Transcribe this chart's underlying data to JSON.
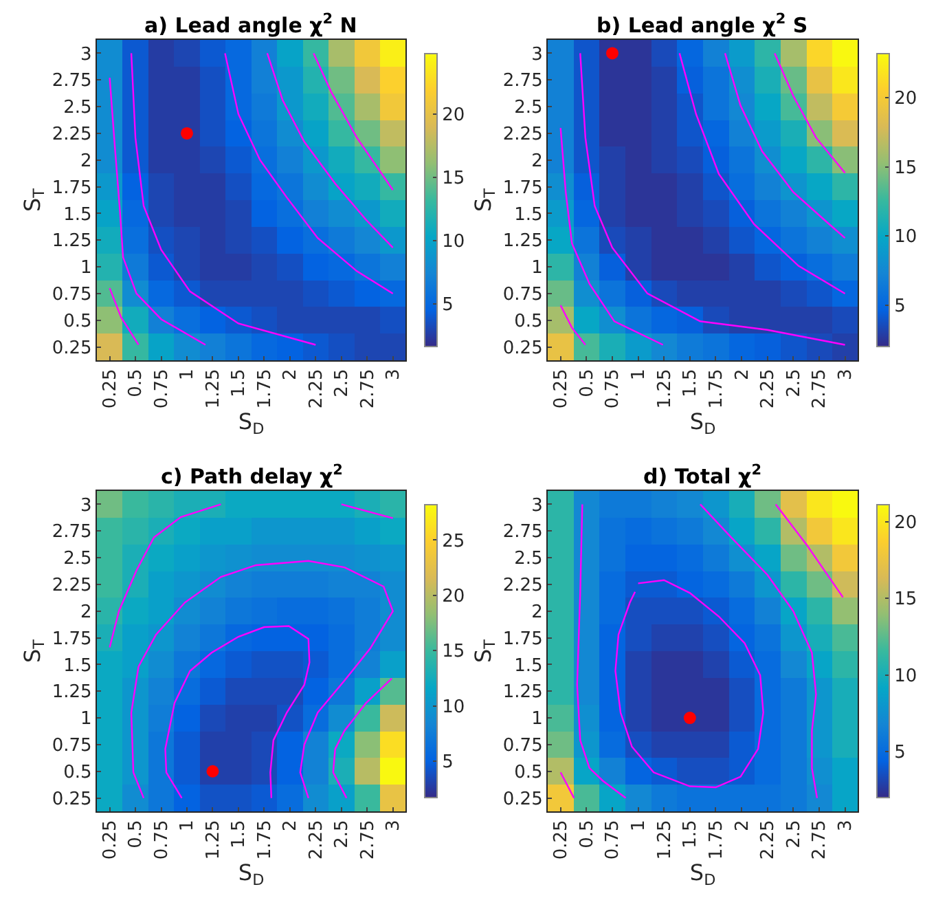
{
  "chart_data": [
    {
      "type": "heatmap",
      "title": "a) Lead angle χ$^{2}$ N",
      "xlabel": "S$_{D}$",
      "ylabel": "S$_{T}$",
      "x": [
        0.25,
        0.5,
        0.75,
        1,
        1.25,
        1.5,
        1.75,
        2,
        2.25,
        2.5,
        2.75,
        3
      ],
      "y": [
        3,
        2.75,
        2.5,
        2.25,
        2,
        1.75,
        1.5,
        1.25,
        1,
        0.75,
        0.5,
        0.25
      ],
      "xlim": [
        0.125,
        3.125
      ],
      "ylim": [
        0.125,
        3.125
      ],
      "xticks": [
        0.25,
        0.5,
        0.75,
        1,
        1.25,
        1.5,
        1.75,
        2,
        2.25,
        2.5,
        2.75,
        3
      ],
      "yticks": [
        0.25,
        0.5,
        0.75,
        1,
        1.25,
        1.5,
        1.75,
        2,
        2.25,
        2.5,
        2.75,
        3
      ],
      "clim": [
        1.6,
        24.8
      ],
      "cticks": [
        5,
        10,
        15,
        20
      ],
      "cells": [
        [
          8,
          4,
          2.5,
          3,
          4,
          5,
          7,
          10,
          13,
          17,
          21,
          24
        ],
        [
          8,
          4,
          2.5,
          2.5,
          3.5,
          5,
          7,
          9,
          12,
          15,
          19,
          22
        ],
        [
          8,
          4,
          2.5,
          2.5,
          3.5,
          5,
          6.5,
          9,
          11,
          14,
          17,
          21
        ],
        [
          8,
          4,
          2.5,
          2.5,
          3.5,
          4.5,
          6,
          8,
          10,
          13,
          15,
          18
        ],
        [
          8,
          4,
          2.5,
          2.5,
          3,
          4,
          5.5,
          7,
          9,
          11,
          13,
          16
        ],
        [
          9,
          4.5,
          3,
          2.5,
          2.5,
          3.5,
          5,
          6,
          8,
          10,
          11,
          13
        ],
        [
          10,
          5,
          3,
          2.5,
          2.5,
          3,
          4.5,
          5.5,
          7,
          8,
          9,
          11
        ],
        [
          11,
          5.5,
          3.5,
          3,
          2.5,
          3,
          3.5,
          4.5,
          5.5,
          6.5,
          7.5,
          9
        ],
        [
          12,
          6.5,
          4,
          3,
          2.5,
          2.5,
          3,
          3.5,
          4.5,
          5,
          6,
          7
        ],
        [
          14,
          8,
          5,
          4,
          3,
          3,
          3,
          3,
          3.5,
          4,
          4.5,
          5
        ],
        [
          16,
          11,
          7,
          5.5,
          4.5,
          4,
          3.5,
          3,
          3,
          3,
          3,
          3.5
        ],
        [
          19,
          13,
          10,
          8,
          7,
          6,
          5,
          4.5,
          4,
          3.5,
          3,
          3
        ]
      ],
      "series": [
        {
          "type": "line",
          "color": "#ff00ff",
          "x": [
            0.25,
            0.3,
            0.35,
            0.38,
            0.51,
            0.75,
            1.18
          ],
          "values": [
            2.77,
            2.13,
            1.52,
            1.09,
            0.75,
            0.51,
            0.27
          ]
        },
        {
          "type": "line",
          "color": "#ff00ff",
          "x": [
            0.25,
            0.36,
            0.53
          ],
          "values": [
            0.8,
            0.53,
            0.27
          ]
        },
        {
          "type": "line",
          "color": "#ff00ff",
          "x": [
            0.46,
            0.5,
            0.58,
            0.75,
            1.03,
            1.5,
            2.25
          ],
          "values": [
            3.0,
            2.21,
            1.57,
            1.16,
            0.77,
            0.47,
            0.27
          ]
        },
        {
          "type": "line",
          "color": "#ff00ff",
          "x": [
            1.37,
            1.5,
            1.71,
            1.97,
            2.27,
            2.65,
            3.0
          ],
          "values": [
            3.0,
            2.43,
            2.0,
            1.65,
            1.27,
            0.96,
            0.75
          ]
        },
        {
          "type": "line",
          "color": "#ff00ff",
          "x": [
            1.78,
            1.93,
            2.14,
            2.44,
            2.74,
            3.0
          ],
          "values": [
            3.0,
            2.56,
            2.17,
            1.78,
            1.44,
            1.18
          ]
        },
        {
          "type": "line",
          "color": "#ff00ff",
          "x": [
            2.23,
            2.4,
            2.65,
            3.0
          ],
          "values": [
            3.0,
            2.64,
            2.21,
            1.72
          ]
        },
        {
          "type": "scatter",
          "marker": "circle",
          "color": "#ff0000",
          "x": [
            1
          ],
          "values": [
            2.25
          ]
        }
      ]
    },
    {
      "type": "heatmap",
      "title": "b) Lead angle χ$^{2}$ S",
      "xlabel": "S$_{D}$",
      "ylabel": "S$_{T}$",
      "x": [
        0.25,
        0.5,
        0.75,
        1,
        1.25,
        1.5,
        1.75,
        2,
        2.25,
        2.5,
        2.75,
        3
      ],
      "y": [
        3,
        2.75,
        2.5,
        2.25,
        2,
        1.75,
        1.5,
        1.25,
        1,
        0.75,
        0.5,
        0.25
      ],
      "xlim": [
        0.125,
        3.125
      ],
      "ylim": [
        0.125,
        3.125
      ],
      "xticks": [
        0.25,
        0.5,
        0.75,
        1,
        1.25,
        1.5,
        1.75,
        2,
        2.25,
        2.5,
        2.75,
        3
      ],
      "yticks": [
        0.25,
        0.5,
        0.75,
        1,
        1.25,
        1.5,
        1.75,
        2,
        2.25,
        2.5,
        2.75,
        3
      ],
      "clim": [
        2,
        23.2
      ],
      "cticks": [
        5,
        10,
        15,
        20
      ],
      "cells": [
        [
          7,
          4,
          2.5,
          2.5,
          3.5,
          5,
          7,
          9,
          12,
          16,
          21,
          23
        ],
        [
          7,
          4,
          2.5,
          2.5,
          3,
          4.5,
          6,
          8,
          11,
          14,
          19,
          22
        ],
        [
          7,
          4,
          2.5,
          2.5,
          3,
          4,
          6,
          7.5,
          10,
          13,
          17,
          20
        ],
        [
          7,
          4,
          2.5,
          2.5,
          3,
          4,
          5,
          7,
          9,
          11,
          15,
          18
        ],
        [
          7,
          4,
          3,
          2.5,
          3,
          3.5,
          4.5,
          6,
          8,
          10,
          12,
          15
        ],
        [
          8,
          4.5,
          3,
          2.5,
          2.5,
          3,
          4,
          5.5,
          7,
          8.5,
          10,
          12
        ],
        [
          9,
          5,
          3,
          2.5,
          2.5,
          3,
          3.5,
          4.5,
          6,
          7,
          8.5,
          10
        ],
        [
          10,
          6,
          3.5,
          3,
          2.5,
          2.5,
          3,
          4,
          5,
          6,
          7,
          8
        ],
        [
          12,
          7,
          4.5,
          3,
          2.5,
          2.5,
          2.5,
          3,
          4,
          4.5,
          5.5,
          6.5
        ],
        [
          14,
          8,
          6,
          4.5,
          3.5,
          3,
          3,
          3,
          3,
          3.5,
          4,
          5
        ],
        [
          16,
          10,
          8,
          6,
          5,
          4.5,
          3.5,
          3,
          3,
          3,
          3,
          3.5
        ],
        [
          19,
          13,
          11,
          9,
          7.5,
          6.5,
          6,
          5,
          4.5,
          4,
          3.5,
          3
        ]
      ],
      "series": [
        {
          "type": "line",
          "color": "#ff00ff",
          "x": [
            0.25,
            0.3,
            0.36,
            0.53,
            0.77,
            1.24
          ],
          "values": [
            2.3,
            1.7,
            1.22,
            0.84,
            0.49,
            0.27
          ]
        },
        {
          "type": "line",
          "color": "#ff00ff",
          "x": [
            0.25,
            0.36,
            0.49
          ],
          "values": [
            0.64,
            0.43,
            0.27
          ]
        },
        {
          "type": "line",
          "color": "#ff00ff",
          "x": [
            0.44,
            0.49,
            0.58,
            0.75,
            1.09,
            1.6,
            2.25,
            3.0
          ],
          "values": [
            3.0,
            2.21,
            1.57,
            1.18,
            0.75,
            0.49,
            0.41,
            0.27
          ]
        },
        {
          "type": "line",
          "color": "#ff00ff",
          "x": [
            1.4,
            1.56,
            1.78,
            2.12,
            2.55,
            3.0
          ],
          "values": [
            3.0,
            2.43,
            1.87,
            1.4,
            1.01,
            0.75
          ]
        },
        {
          "type": "line",
          "color": "#ff00ff",
          "x": [
            1.84,
            1.99,
            2.2,
            2.5,
            2.8,
            3.0
          ],
          "values": [
            3.0,
            2.51,
            2.08,
            1.7,
            1.44,
            1.27
          ]
        },
        {
          "type": "line",
          "color": "#ff00ff",
          "x": [
            2.32,
            2.5,
            2.72,
            3.0
          ],
          "values": [
            3.0,
            2.6,
            2.21,
            1.88
          ]
        },
        {
          "type": "scatter",
          "marker": "circle",
          "color": "#ff0000",
          "x": [
            0.75
          ],
          "values": [
            3
          ]
        }
      ]
    },
    {
      "type": "heatmap",
      "title": "c) Path delay χ$^{2}$",
      "xlabel": "S$_{D}$",
      "ylabel": "S$_{T}$",
      "x": [
        0.25,
        0.5,
        0.75,
        1,
        1.25,
        1.5,
        1.75,
        2,
        2.25,
        2.5,
        2.75,
        3
      ],
      "y": [
        3,
        2.75,
        2.5,
        2.25,
        2,
        1.75,
        1.5,
        1.25,
        1,
        0.75,
        0.5,
        0.25
      ],
      "xlim": [
        0.125,
        3.125
      ],
      "ylim": [
        0.125,
        3.125
      ],
      "xticks": [
        0.25,
        0.5,
        0.75,
        1,
        1.25,
        1.5,
        1.75,
        2,
        2.25,
        2.5,
        2.75,
        3
      ],
      "yticks": [
        0.25,
        0.5,
        0.75,
        1,
        1.25,
        1.5,
        1.75,
        2,
        2.25,
        2.5,
        2.75,
        3
      ],
      "clim": [
        1.7,
        28.2
      ],
      "cticks": [
        5,
        10,
        15,
        20,
        25
      ],
      "cells": [
        [
          17,
          15,
          14,
          13,
          13,
          12,
          12,
          12,
          12,
          12,
          13,
          14
        ],
        [
          15,
          14,
          13,
          12,
          11,
          11,
          10,
          10,
          10,
          10,
          11,
          12
        ],
        [
          15,
          13,
          12,
          11,
          10,
          9.5,
          9,
          9,
          9,
          9,
          9.5,
          10
        ],
        [
          15,
          13,
          11,
          10,
          9,
          8,
          7.5,
          7.5,
          7.5,
          8,
          8,
          9
        ],
        [
          14,
          12,
          11,
          9,
          8,
          7,
          6.5,
          6,
          6,
          6.5,
          7.5,
          9
        ],
        [
          13,
          11,
          10,
          8,
          7,
          5.5,
          5,
          5,
          5,
          6,
          7.5,
          9
        ],
        [
          12,
          11,
          9,
          7,
          5.5,
          4.5,
          4,
          4,
          4.5,
          6,
          8,
          11
        ],
        [
          12,
          10,
          8,
          6,
          4.5,
          3.5,
          3.5,
          3.5,
          5,
          7,
          11,
          16
        ],
        [
          12,
          10,
          7.5,
          5,
          3.5,
          3,
          3,
          4,
          6,
          9,
          15,
          21
        ],
        [
          12,
          10,
          7,
          4.5,
          3,
          3,
          3.5,
          5,
          8,
          12,
          18,
          26
        ],
        [
          12,
          10,
          7,
          4.5,
          3,
          3,
          3.5,
          5,
          8,
          13,
          20,
          28
        ],
        [
          12,
          9,
          7,
          5,
          4,
          4,
          4.5,
          6,
          9,
          11,
          15,
          23
        ]
      ],
      "series": [
        {
          "type": "line",
          "color": "#ff00ff",
          "x": [
            0.25,
            0.34,
            0.51,
            0.68,
            0.94,
            1.33
          ],
          "values": [
            1.66,
            2.0,
            2.38,
            2.69,
            2.88,
            3.0
          ]
        },
        {
          "type": "line",
          "color": "#ff00ff",
          "x": [
            0.58,
            0.48,
            0.46,
            0.53,
            0.7,
            0.98,
            1.33,
            1.67,
            2.18,
            2.53,
            2.91,
            3.0,
            2.78,
            2.53,
            2.27,
            2.14,
            2.1,
            2.18
          ],
          "values": [
            0.25,
            0.49,
            1.05,
            1.48,
            1.78,
            2.08,
            2.32,
            2.43,
            2.47,
            2.41,
            2.23,
            2.0,
            1.65,
            1.35,
            1.05,
            0.75,
            0.49,
            0.25
          ]
        },
        {
          "type": "line",
          "color": "#ff00ff",
          "x": [
            0.95,
            0.8,
            0.79,
            0.88,
            1.03,
            1.24,
            1.5,
            1.75,
            1.99,
            2.18,
            2.19,
            2.14,
            1.97,
            1.84,
            1.81,
            1.82
          ],
          "values": [
            0.25,
            0.49,
            0.71,
            1.14,
            1.44,
            1.61,
            1.76,
            1.85,
            1.86,
            1.74,
            1.52,
            1.31,
            1.05,
            0.79,
            0.49,
            0.25
          ]
        },
        {
          "type": "line",
          "color": "#ff00ff",
          "x": [
            2.99,
            2.74,
            2.53,
            2.44,
            2.42,
            2.55
          ],
          "values": [
            1.37,
            1.14,
            0.88,
            0.71,
            0.49,
            0.25
          ]
        },
        {
          "type": "line",
          "color": "#ff00ff",
          "x": [
            2.5,
            3.0
          ],
          "values": [
            3.0,
            2.87
          ]
        },
        {
          "type": "scatter",
          "marker": "circle",
          "color": "#ff0000",
          "x": [
            1.25
          ],
          "values": [
            0.5
          ]
        }
      ]
    },
    {
      "type": "heatmap",
      "title": "d) Total χ$^{2}$",
      "xlabel": "S$_{D}$",
      "ylabel": "S$_{T}$",
      "x": [
        0.25,
        0.5,
        0.75,
        1,
        1.25,
        1.5,
        1.75,
        2,
        2.25,
        2.5,
        2.75,
        3
      ],
      "y": [
        3,
        2.75,
        2.5,
        2.25,
        2,
        1.75,
        1.5,
        1.25,
        1,
        0.75,
        0.5,
        0.25
      ],
      "xlim": [
        0.125,
        3.125
      ],
      "ylim": [
        0.125,
        3.125
      ],
      "xticks": [
        0.25,
        0.5,
        0.75,
        1,
        1.25,
        1.5,
        1.75,
        2,
        2.25,
        2.5,
        2.75,
        3
      ],
      "yticks": [
        0.25,
        0.5,
        0.75,
        1,
        1.25,
        1.5,
        1.75,
        2,
        2.25,
        2.5,
        2.75,
        3
      ],
      "clim": [
        2,
        21.1
      ],
      "cticks": [
        5,
        10,
        15,
        20
      ],
      "cells": [
        [
          11,
          7,
          6,
          6,
          6.5,
          7,
          8,
          10,
          13,
          17,
          20,
          21
        ],
        [
          11,
          7,
          5.5,
          5,
          5.5,
          6,
          7,
          9,
          11,
          15,
          18,
          20
        ],
        [
          11,
          7,
          5.5,
          4.5,
          4.5,
          5,
          6,
          7.5,
          9,
          13,
          15,
          18
        ],
        [
          11,
          7,
          5,
          4,
          4,
          4.5,
          5,
          6,
          8,
          11,
          13,
          16
        ],
        [
          11,
          7,
          5,
          3.5,
          3.5,
          3.5,
          4,
          5,
          6.5,
          9,
          11,
          14
        ],
        [
          11,
          7,
          4.5,
          3.5,
          3,
          3,
          3.5,
          4.5,
          5.5,
          8,
          10,
          12
        ],
        [
          11,
          7,
          4.5,
          3,
          2.5,
          2.5,
          3,
          4,
          5,
          7,
          9,
          11
        ],
        [
          11,
          7,
          4.5,
          3,
          2.5,
          2.5,
          2.5,
          3.5,
          5,
          6,
          8,
          10
        ],
        [
          12,
          7.5,
          4.5,
          3,
          2.5,
          2.5,
          2.5,
          3.5,
          5,
          6,
          8,
          10
        ],
        [
          13,
          8,
          5,
          3.5,
          3,
          3,
          3,
          4,
          5,
          6,
          8,
          10
        ],
        [
          15,
          9,
          6.5,
          4.5,
          4,
          3.5,
          3.5,
          4,
          5,
          6,
          7.5,
          9
        ],
        [
          18,
          12,
          9,
          7,
          6,
          5.5,
          5.5,
          5.5,
          5.5,
          6,
          7,
          9
        ]
      ],
      "series": [
        {
          "type": "line",
          "color": "#ff00ff",
          "x": [
            0.46,
            0.44,
            0.41,
            0.44,
            0.53,
            0.66,
            0.88
          ],
          "values": [
            3.0,
            2.17,
            1.31,
            0.79,
            0.53,
            0.41,
            0.25
          ]
        },
        {
          "type": "line",
          "color": "#ff00ff",
          "x": [
            0.25,
            0.38
          ],
          "values": [
            0.49,
            0.25
          ]
        },
        {
          "type": "line",
          "color": "#ff00ff",
          "x": [
            1.0,
            1.25,
            1.5,
            1.78,
            2.03,
            2.18,
            2.21,
            2.16,
            1.99,
            1.75,
            1.5,
            1.15,
            0.94,
            0.83,
            0.78,
            0.81,
            0.92,
            0.97
          ],
          "values": [
            2.26,
            2.29,
            2.17,
            1.95,
            1.7,
            1.4,
            1.05,
            0.71,
            0.45,
            0.35,
            0.36,
            0.49,
            0.73,
            1.05,
            1.44,
            1.78,
            2.08,
            2.18
          ]
        },
        {
          "type": "line",
          "color": "#ff00ff",
          "x": [
            1.6,
            1.9,
            2.25,
            2.5,
            2.68,
            2.72,
            2.68,
            2.68,
            2.73
          ],
          "values": [
            3.0,
            2.69,
            2.34,
            2.0,
            1.61,
            1.22,
            0.88,
            0.53,
            0.25
          ]
        },
        {
          "type": "line",
          "color": "#ff00ff",
          "x": [
            2.33,
            2.63,
            2.98
          ],
          "values": [
            3.0,
            2.62,
            2.13
          ]
        },
        {
          "type": "scatter",
          "marker": "circle",
          "color": "#ff0000",
          "x": [
            1.5
          ],
          "values": [
            1
          ]
        }
      ]
    }
  ]
}
